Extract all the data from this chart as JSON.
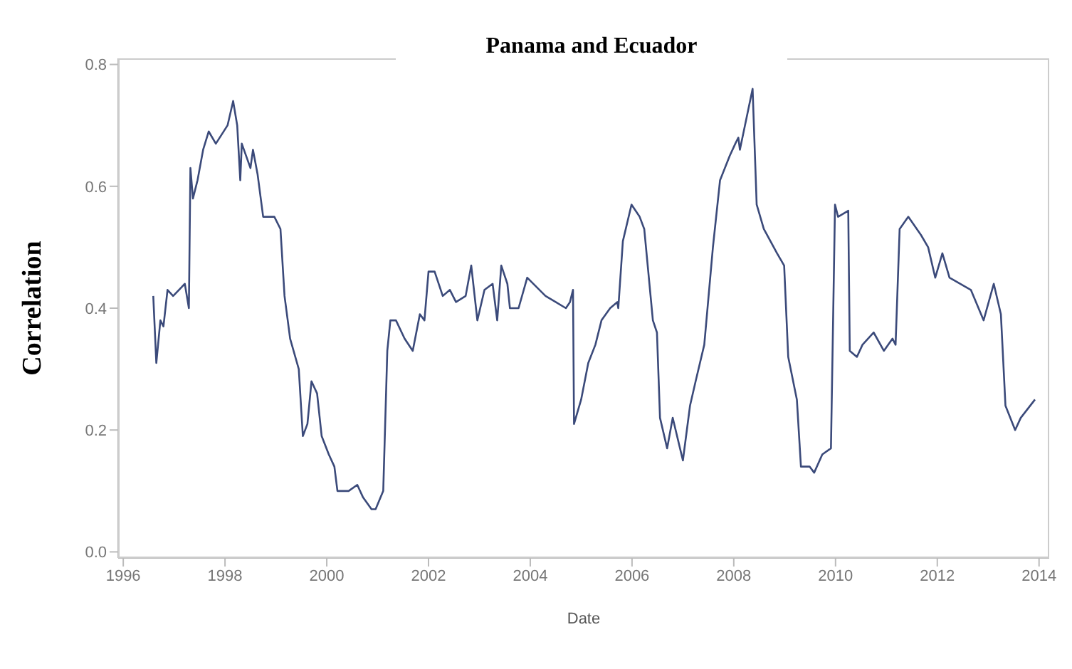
{
  "chart_data": {
    "type": "line",
    "title": "Panama and Ecuador",
    "xlabel": "Date",
    "ylabel": "Correlation",
    "xlim": [
      1995.9,
      2014.2
    ],
    "xticks": [
      1996,
      1998,
      2000,
      2002,
      2004,
      2006,
      2008,
      2010,
      2012,
      2014
    ],
    "ylim": [
      -0.01,
      0.81
    ],
    "yticks": [
      {
        "value": 0,
        "label": "0.0"
      },
      {
        "value": 0.2,
        "label": "0.2"
      },
      {
        "value": 0.4,
        "label": "0.4"
      },
      {
        "value": 0.6,
        "label": "0.6"
      },
      {
        "value": 0.8,
        "label": "0.8"
      }
    ],
    "grid": false,
    "legend": false,
    "marker": "none",
    "line_style": "solid",
    "x": [
      1996.59,
      1996.65,
      1996.73,
      1996.79,
      1996.87,
      1996.98,
      1997.21,
      1997.29,
      1997.32,
      1997.37,
      1997.46,
      1997.57,
      1997.68,
      1997.82,
      1998.05,
      1998.16,
      1998.24,
      1998.3,
      1998.33,
      1998.5,
      1998.55,
      1998.64,
      1998.75,
      1998.97,
      1999.09,
      1999.17,
      1999.28,
      1999.45,
      1999.53,
      1999.62,
      1999.7,
      1999.81,
      1999.9,
      2000.04,
      2000.15,
      2000.21,
      2000.43,
      2000.6,
      2000.71,
      2000.88,
      2000.96,
      2001.11,
      2001.19,
      2001.25,
      2001.36,
      2001.53,
      2001.69,
      2001.83,
      2001.92,
      2002.0,
      2002.12,
      2002.28,
      2002.42,
      2002.54,
      2002.73,
      2002.84,
      2002.96,
      2003.1,
      2003.26,
      2003.35,
      2003.43,
      2003.55,
      2003.6,
      2003.77,
      2003.94,
      2004.3,
      2004.5,
      2004.7,
      2004.78,
      2004.84,
      2004.86,
      2005.0,
      2005.14,
      2005.28,
      2005.4,
      2005.57,
      2005.71,
      2005.73,
      2005.82,
      2005.99,
      2006.15,
      2006.24,
      2006.41,
      2006.49,
      2006.55,
      2006.69,
      2006.8,
      2007.0,
      2007.14,
      2007.25,
      2007.42,
      2007.59,
      2007.73,
      2007.92,
      2008.03,
      2008.09,
      2008.12,
      2008.37,
      2008.45,
      2008.59,
      2008.85,
      2008.99,
      2009.07,
      2009.24,
      2009.32,
      2009.49,
      2009.58,
      2009.74,
      2009.91,
      2009.99,
      2010.05,
      2010.25,
      2010.28,
      2010.42,
      2010.53,
      2010.75,
      2010.95,
      2011.12,
      2011.18,
      2011.26,
      2011.43,
      2011.68,
      2011.82,
      2011.96,
      2012.1,
      2012.24,
      2012.66,
      2012.91,
      2013.11,
      2013.25,
      2013.34,
      2013.53,
      2013.64,
      2013.92
    ],
    "series": [
      {
        "color": "#3b4a7a",
        "values": [
          0.42,
          0.31,
          0.38,
          0.37,
          0.43,
          0.42,
          0.44,
          0.4,
          0.63,
          0.58,
          0.61,
          0.66,
          0.69,
          0.67,
          0.7,
          0.74,
          0.7,
          0.61,
          0.67,
          0.63,
          0.66,
          0.62,
          0.55,
          0.55,
          0.53,
          0.42,
          0.35,
          0.3,
          0.19,
          0.21,
          0.28,
          0.26,
          0.19,
          0.16,
          0.14,
          0.1,
          0.1,
          0.11,
          0.09,
          0.07,
          0.07,
          0.1,
          0.33,
          0.38,
          0.38,
          0.35,
          0.33,
          0.39,
          0.38,
          0.46,
          0.46,
          0.42,
          0.43,
          0.41,
          0.42,
          0.47,
          0.38,
          0.43,
          0.44,
          0.38,
          0.47,
          0.44,
          0.4,
          0.4,
          0.45,
          0.42,
          0.41,
          0.4,
          0.41,
          0.43,
          0.21,
          0.25,
          0.31,
          0.34,
          0.38,
          0.4,
          0.41,
          0.4,
          0.51,
          0.57,
          0.55,
          0.53,
          0.38,
          0.36,
          0.22,
          0.17,
          0.22,
          0.15,
          0.24,
          0.28,
          0.34,
          0.5,
          0.61,
          0.65,
          0.67,
          0.68,
          0.66,
          0.76,
          0.57,
          0.53,
          0.49,
          0.47,
          0.32,
          0.25,
          0.14,
          0.14,
          0.13,
          0.16,
          0.17,
          0.57,
          0.55,
          0.56,
          0.33,
          0.32,
          0.34,
          0.36,
          0.33,
          0.35,
          0.34,
          0.53,
          0.55,
          0.52,
          0.5,
          0.45,
          0.49,
          0.45,
          0.43,
          0.38,
          0.44,
          0.39,
          0.24,
          0.2,
          0.22,
          0.25
        ]
      }
    ]
  }
}
